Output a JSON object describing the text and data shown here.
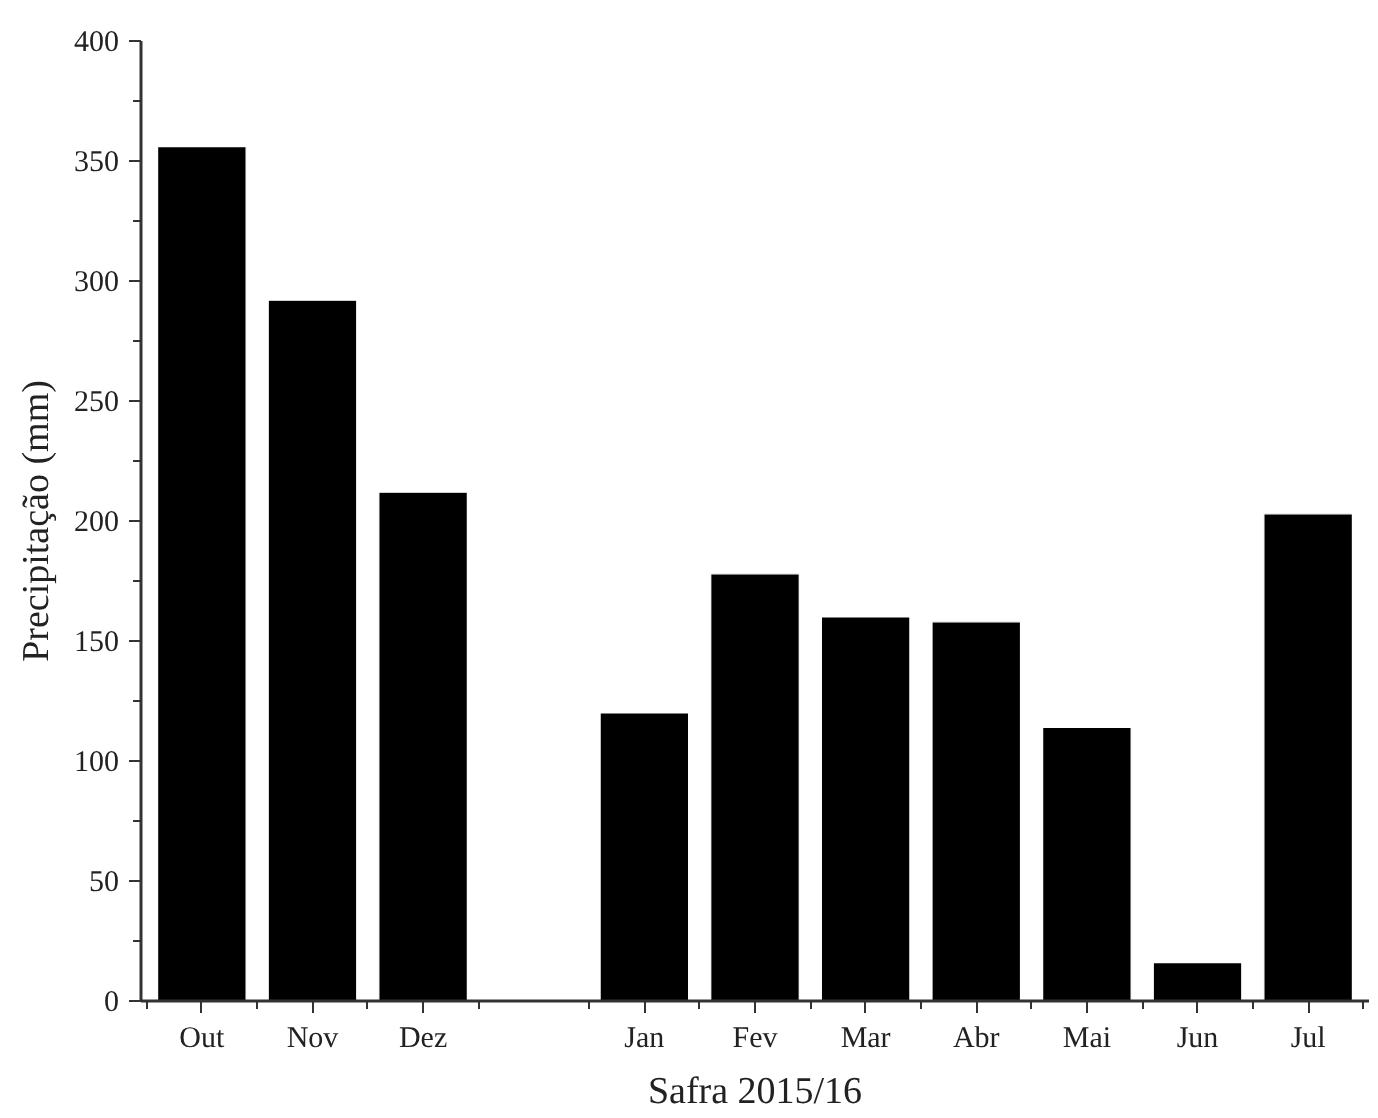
{
  "chart_data": {
    "type": "bar",
    "xlabel": "Safra 2015/16",
    "ylabel": "Precipitação (mm)",
    "categories": [
      "Out",
      "Nov",
      "Dez",
      null,
      "Jan",
      "Fev",
      "Mar",
      "Abr",
      "Mai",
      "Jun",
      "Jul"
    ],
    "values": [
      356,
      292,
      212,
      null,
      120,
      178,
      160,
      158,
      114,
      16,
      203
    ],
    "color": "#000000",
    "ylim": [
      0,
      400
    ],
    "yticks": [
      0,
      50,
      100,
      150,
      200,
      250,
      300,
      350,
      400
    ],
    "grid": false
  }
}
